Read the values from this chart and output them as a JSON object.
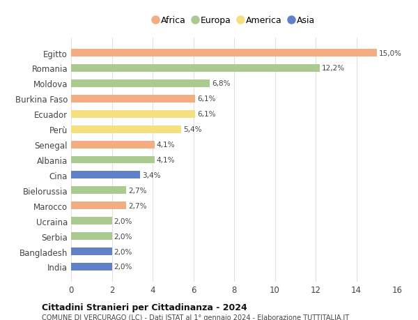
{
  "countries": [
    "Egitto",
    "Romania",
    "Moldova",
    "Burkina Faso",
    "Ecuador",
    "Perù",
    "Senegal",
    "Albania",
    "Cina",
    "Bielorussia",
    "Marocco",
    "Ucraina",
    "Serbia",
    "Bangladesh",
    "India"
  ],
  "values": [
    15.0,
    12.2,
    6.8,
    6.1,
    6.1,
    5.4,
    4.1,
    4.1,
    3.4,
    2.7,
    2.7,
    2.0,
    2.0,
    2.0,
    2.0
  ],
  "continents": [
    "Africa",
    "Europa",
    "Europa",
    "Africa",
    "America",
    "America",
    "Africa",
    "Europa",
    "Asia",
    "Europa",
    "Africa",
    "Europa",
    "Europa",
    "Asia",
    "Asia"
  ],
  "labels": [
    "15,0%",
    "12,2%",
    "6,8%",
    "6,1%",
    "6,1%",
    "5,4%",
    "4,1%",
    "4,1%",
    "3,4%",
    "2,7%",
    "2,7%",
    "2,0%",
    "2,0%",
    "2,0%",
    "2,0%"
  ],
  "colors": {
    "Africa": "#F2AD82",
    "Europa": "#ABCA90",
    "America": "#F5E080",
    "Asia": "#6080C8"
  },
  "legend_order": [
    "Africa",
    "Europa",
    "America",
    "Asia"
  ],
  "xlim": [
    0,
    16
  ],
  "xticks": [
    0,
    2,
    4,
    6,
    8,
    10,
    12,
    14,
    16
  ],
  "title": "Cittadini Stranieri per Cittadinanza - 2024",
  "subtitle": "COMUNE DI VERCURAGO (LC) - Dati ISTAT al 1° gennaio 2024 - Elaborazione TUTTITALIA.IT",
  "background_color": "#ffffff",
  "grid_color": "#e0e0e0"
}
